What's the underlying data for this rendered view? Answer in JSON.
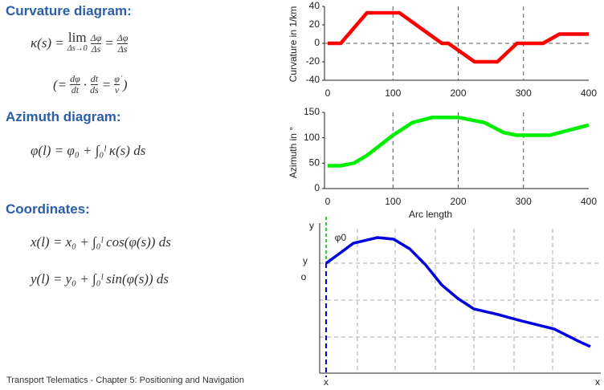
{
  "headings": [
    "Curvature diagram:",
    "Azimuth diagram:",
    "Coordinates:"
  ],
  "formulas": {
    "curvature": {
      "lhs": "κ(s) =",
      "lim": "lim",
      "lim_sub": "Δs→0",
      "f1_num": "Δφ",
      "f1_den": "Δs",
      "eq": "=",
      "f2_num": "Δφ",
      "f2_den": "Δs"
    },
    "rate": {
      "open": "(=",
      "a_num": "dφ",
      "a_den": "dt",
      "dot": "·",
      "b_num": "dt",
      "b_den": "ds",
      "eq": "=",
      "c_num": "φ̇",
      "c_den": "v",
      "close": ")"
    },
    "azimuth": "φ(l) = φ₀ + ∫₀ˡ κ(s) ds",
    "x": "x(l) = x₀ + ∫₀ˡ cos(φ(s)) ds",
    "y": "y(l) = y₀ + ∫₀ˡ sin(φ(s)) ds"
  },
  "footer": "Transport Telematics - Chapter 5: Positioning and Navigation",
  "chart_data": [
    {
      "type": "line",
      "y_label": "Curvature in 1/km",
      "x": [
        0,
        20,
        60,
        110,
        175,
        185,
        225,
        260,
        290,
        330,
        355,
        400
      ],
      "series": [
        {
          "color": "#ff0000",
          "values": [
            0,
            0,
            33,
            33,
            0,
            0,
            -20,
            -20,
            0,
            0,
            10,
            10
          ]
        }
      ],
      "xlim": [
        0,
        400
      ],
      "xticks": [
        0,
        100,
        200,
        300,
        400
      ],
      "ylim": [
        -40,
        40
      ],
      "yticks": [
        -40,
        -20,
        0,
        20,
        40
      ],
      "grid": true
    },
    {
      "type": "line",
      "y_label": "Azimuth in °",
      "x_label": "Arc length",
      "x": [
        0,
        20,
        40,
        60,
        80,
        100,
        130,
        160,
        200,
        240,
        270,
        290,
        340,
        370,
        400
      ],
      "series": [
        {
          "color": "#00ee00",
          "values": [
            45,
            45,
            50,
            65,
            85,
            105,
            130,
            140,
            140,
            130,
            110,
            105,
            105,
            115,
            125
          ]
        }
      ],
      "xlim": [
        0,
        400
      ],
      "xticks": [
        0,
        100,
        200,
        300,
        400
      ],
      "ylim": [
        0,
        150
      ],
      "yticks": [
        0,
        50,
        100,
        150
      ],
      "grid": true
    },
    {
      "type": "line",
      "y_label": "y",
      "x_label": "x",
      "x0_label": "x",
      "y0_label": "y",
      "y0_sub": "o",
      "angle_label": "φ0",
      "x": [
        2.3,
        6.3,
        12.1,
        20.7,
        26.5,
        32.3,
        38,
        43.8,
        49.6,
        55.3,
        64,
        72.6,
        84.1,
        92.8,
        97.1
      ],
      "series": [
        {
          "color": "#0000dd",
          "values": [
            73.3,
            78.9,
            87.2,
            91.1,
            90,
            83.3,
            72.2,
            58.3,
            48.9,
            41.7,
            37.8,
            33.3,
            27.8,
            19.4,
            15.6
          ]
        }
      ],
      "xlim": [
        0,
        100
      ],
      "ylim": [
        0,
        100
      ]
    }
  ]
}
